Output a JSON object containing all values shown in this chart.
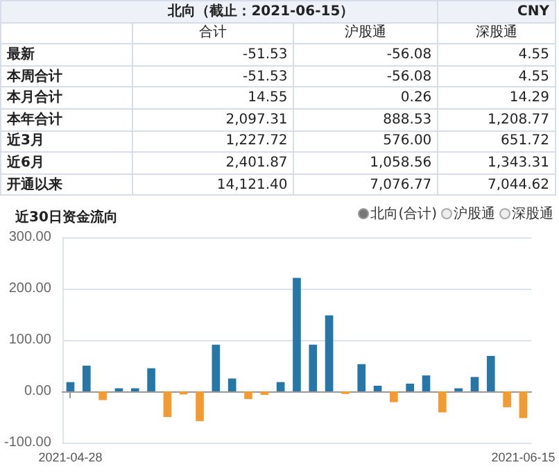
{
  "chart_data": [
    {
      "type": "other",
      "title": "北向（截止：2021-06-15）",
      "annotations": [
        "CNY"
      ],
      "categories": [
        "合计",
        "沪股通",
        "深股通"
      ],
      "y_categories": [
        "最新",
        "本周合计",
        "本月合计",
        "本年合计",
        "近3月",
        "近6月",
        "开通以来"
      ],
      "cell_labels": [
        [
          "-51.53",
          "-56.08",
          "4.55"
        ],
        [
          "-51.53",
          "-56.08",
          "4.55"
        ],
        [
          "14.55",
          "0.26",
          "14.29"
        ],
        [
          "2,097.31",
          "888.53",
          "1,208.77"
        ],
        [
          "1,227.72",
          "576.00",
          "651.72"
        ],
        [
          "2,401.87",
          "1,058.56",
          "1,343.31"
        ],
        [
          "14,121.40",
          "7,076.77",
          "7,044.62"
        ]
      ]
    },
    {
      "type": "bar",
      "title": "近30日资金流向",
      "annotations": [
        "北向(合计)",
        "沪股通",
        "深股通"
      ],
      "categories": [
        "2021-04-28",
        null,
        null,
        null,
        null,
        null,
        null,
        null,
        null,
        null,
        null,
        null,
        null,
        null,
        null,
        null,
        null,
        null,
        null,
        null,
        null,
        null,
        null,
        null,
        null,
        null,
        null,
        null,
        "2021-06-15"
      ],
      "values": [
        18,
        50,
        -17,
        6,
        6,
        45,
        -50,
        -6,
        -58,
        91,
        25,
        -15,
        -7,
        18,
        221,
        91,
        148,
        -5,
        53,
        11,
        -21,
        15,
        31,
        -41,
        6,
        28,
        69,
        -31,
        -52
      ],
      "colors": [
        "#2677a8",
        "#2677a8",
        "#f39a33",
        "#2677a8",
        "#2677a8",
        "#2677a8",
        "#f39a33",
        "#f39a33",
        "#f39a33",
        "#2677a8",
        "#2677a8",
        "#f39a33",
        "#f39a33",
        "#2677a8",
        "#2677a8",
        "#2677a8",
        "#2677a8",
        "#f39a33",
        "#2677a8",
        "#2677a8",
        "#f39a33",
        "#2677a8",
        "#2677a8",
        "#f39a33",
        "#2677a8",
        "#2677a8",
        "#2677a8",
        "#f39a33",
        "#f39a33"
      ],
      "ylim": [
        -100,
        300
      ],
      "yticks": [
        {
          "value": -100,
          "label": "-100.00"
        },
        {
          "value": 0,
          "label": "0.00"
        },
        {
          "value": 100,
          "label": "100.00"
        },
        {
          "value": 200,
          "label": "200.00"
        },
        {
          "value": 300,
          "label": "300.00"
        }
      ],
      "grid": "y"
    }
  ]
}
